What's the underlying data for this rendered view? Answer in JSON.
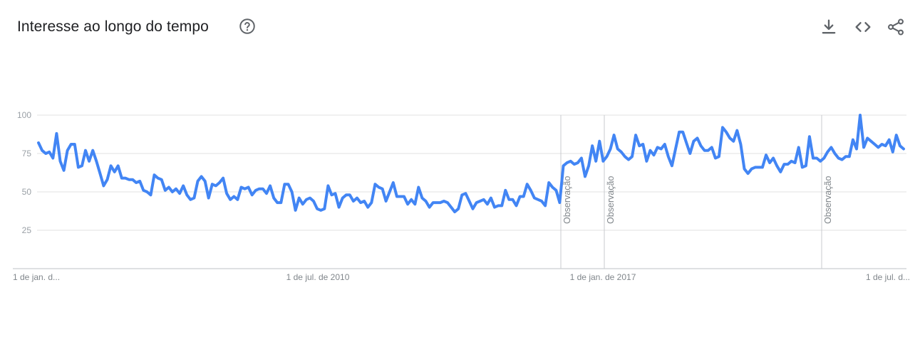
{
  "header": {
    "title": "Interesse ao longo do tempo",
    "help_icon": "help-circle-icon",
    "actions": [
      {
        "name": "download-icon"
      },
      {
        "name": "embed-code-icon"
      },
      {
        "name": "share-icon"
      }
    ]
  },
  "colors": {
    "line": "#4285f4",
    "grid": "#e0e0e0",
    "annotation": "#dadce0",
    "axis_text": "#9aa0a6",
    "icon": "#5f6368"
  },
  "chart_data": {
    "type": "line",
    "title": "",
    "xlabel": "",
    "ylabel": "",
    "ylim": [
      0,
      100
    ],
    "y_ticks": [
      "25",
      "50",
      "75",
      "100"
    ],
    "x_ticks": [
      "1 de jan. d...",
      "1 de jul. de 2010",
      "1 de jan. de 2017",
      "1 de jul. d..."
    ],
    "x_range_start_label": "1 de jan. d...",
    "grid": true,
    "annotations": [
      {
        "label": "Observação",
        "at": "late 2016"
      },
      {
        "label": "Observação",
        "at": "2017"
      },
      {
        "label": "Observação",
        "at": "2020"
      }
    ],
    "series": [
      {
        "values": [
          82,
          77,
          75,
          76,
          72,
          88,
          70,
          64,
          77,
          81,
          81,
          66,
          67,
          77,
          70,
          77,
          70,
          62,
          54,
          58,
          67,
          63,
          67,
          59,
          59,
          58,
          58,
          56,
          57,
          51,
          50,
          48,
          61,
          59,
          58,
          51,
          53,
          50,
          52,
          49,
          54,
          48,
          45,
          46,
          57,
          60,
          57,
          46,
          55,
          54,
          56,
          59,
          49,
          45,
          47,
          45,
          53,
          52,
          53,
          48,
          51,
          52,
          52,
          49,
          54,
          46,
          43,
          43,
          55,
          55,
          50,
          38,
          46,
          42,
          45,
          46,
          44,
          39,
          38,
          39,
          54,
          48,
          49,
          40,
          46,
          48,
          48,
          44,
          46,
          43,
          44,
          40,
          43,
          55,
          53,
          52,
          44,
          50,
          56,
          47,
          47,
          47,
          42,
          45,
          42,
          53,
          46,
          44,
          40,
          43,
          43,
          43,
          44,
          43,
          40,
          37,
          39,
          48,
          49,
          44,
          39,
          43,
          44,
          45,
          42,
          46,
          40,
          41,
          41,
          51,
          45,
          45,
          41,
          47,
          47,
          55,
          51,
          46,
          45,
          44,
          41,
          56,
          53,
          51,
          43,
          67,
          69,
          70,
          68,
          69,
          72,
          60,
          67,
          80,
          70,
          83,
          70,
          73,
          78,
          87,
          78,
          76,
          73,
          71,
          73,
          87,
          80,
          81,
          70,
          77,
          74,
          79,
          78,
          81,
          73,
          67,
          78,
          89,
          89,
          82,
          75,
          83,
          85,
          80,
          77,
          77,
          79,
          72,
          73,
          92,
          89,
          85,
          83,
          90,
          81,
          65,
          62,
          65,
          66,
          66,
          66,
          74,
          69,
          72,
          67,
          63,
          68,
          68,
          70,
          69,
          79,
          66,
          67,
          86,
          72,
          72,
          70,
          72,
          76,
          79,
          75,
          72,
          71,
          73,
          73,
          84,
          78,
          100,
          79,
          85,
          83,
          81,
          79,
          81,
          80,
          84,
          76,
          87,
          80,
          78
        ]
      }
    ]
  }
}
